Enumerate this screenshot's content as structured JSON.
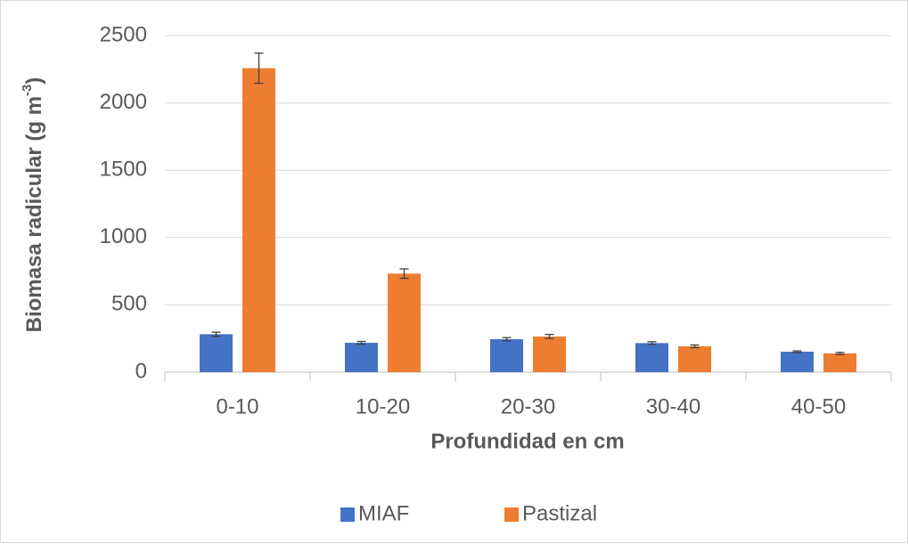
{
  "chart_data": {
    "type": "bar",
    "x_label": "Profundidad en cm",
    "y_label": {
      "text": "Biomasa radicular (g m",
      "sup": "-3",
      "tail": ")"
    },
    "categories": [
      "0-10",
      "10-20",
      "20-30",
      "30-40",
      "40-50"
    ],
    "series": [
      {
        "name": "MIAF",
        "color": "#4472c4",
        "values": [
          282,
          218,
          245,
          216,
          152
        ],
        "errors": [
          15,
          10,
          12,
          10,
          6
        ]
      },
      {
        "name": "Pastizal",
        "color": "#ed7d31",
        "values": [
          2258,
          732,
          265,
          192,
          139
        ],
        "errors": [
          112,
          35,
          15,
          10,
          8
        ]
      }
    ],
    "ylim": [
      0,
      2500
    ],
    "yticks": [
      0,
      500,
      1000,
      1500,
      2000,
      2500
    ],
    "grid": true,
    "legend": "bottom"
  }
}
